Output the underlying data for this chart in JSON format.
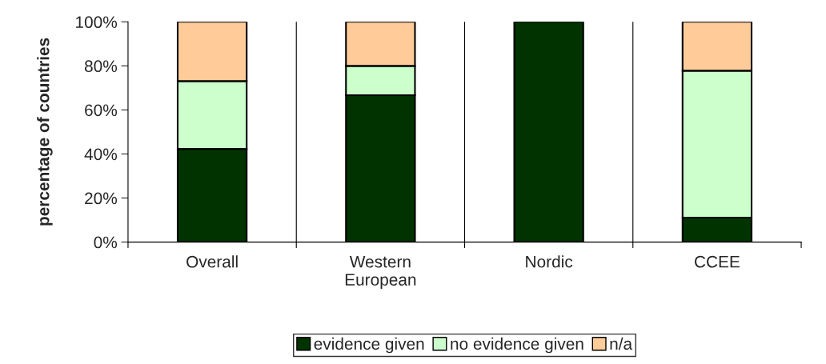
{
  "chart_data": {
    "type": "bar",
    "stacked": true,
    "ylabel": "percentage of countries",
    "categories": [
      "Overall",
      "Western\nEuropean",
      "Nordic",
      "CCEE"
    ],
    "series": [
      {
        "name": "evidence given",
        "color": "#003300",
        "values": [
          42.3,
          66.7,
          100,
          11.1
        ]
      },
      {
        "name": "no evidence given",
        "color": "#ccffcc",
        "values": [
          30.8,
          13.3,
          0,
          66.7
        ]
      },
      {
        "name": "n/a",
        "color": "#ffcc99",
        "values": [
          26.9,
          20,
          0,
          22.2
        ]
      }
    ],
    "ylim": [
      0,
      100
    ],
    "yticks": [
      {
        "value": 0,
        "label": "0%"
      },
      {
        "value": 20,
        "label": "20%"
      },
      {
        "value": 40,
        "label": "40%"
      },
      {
        "value": 60,
        "label": "60%"
      },
      {
        "value": 80,
        "label": "80%"
      },
      {
        "value": 100,
        "label": "100%"
      }
    ],
    "grid": "x",
    "legend": "bottom"
  }
}
